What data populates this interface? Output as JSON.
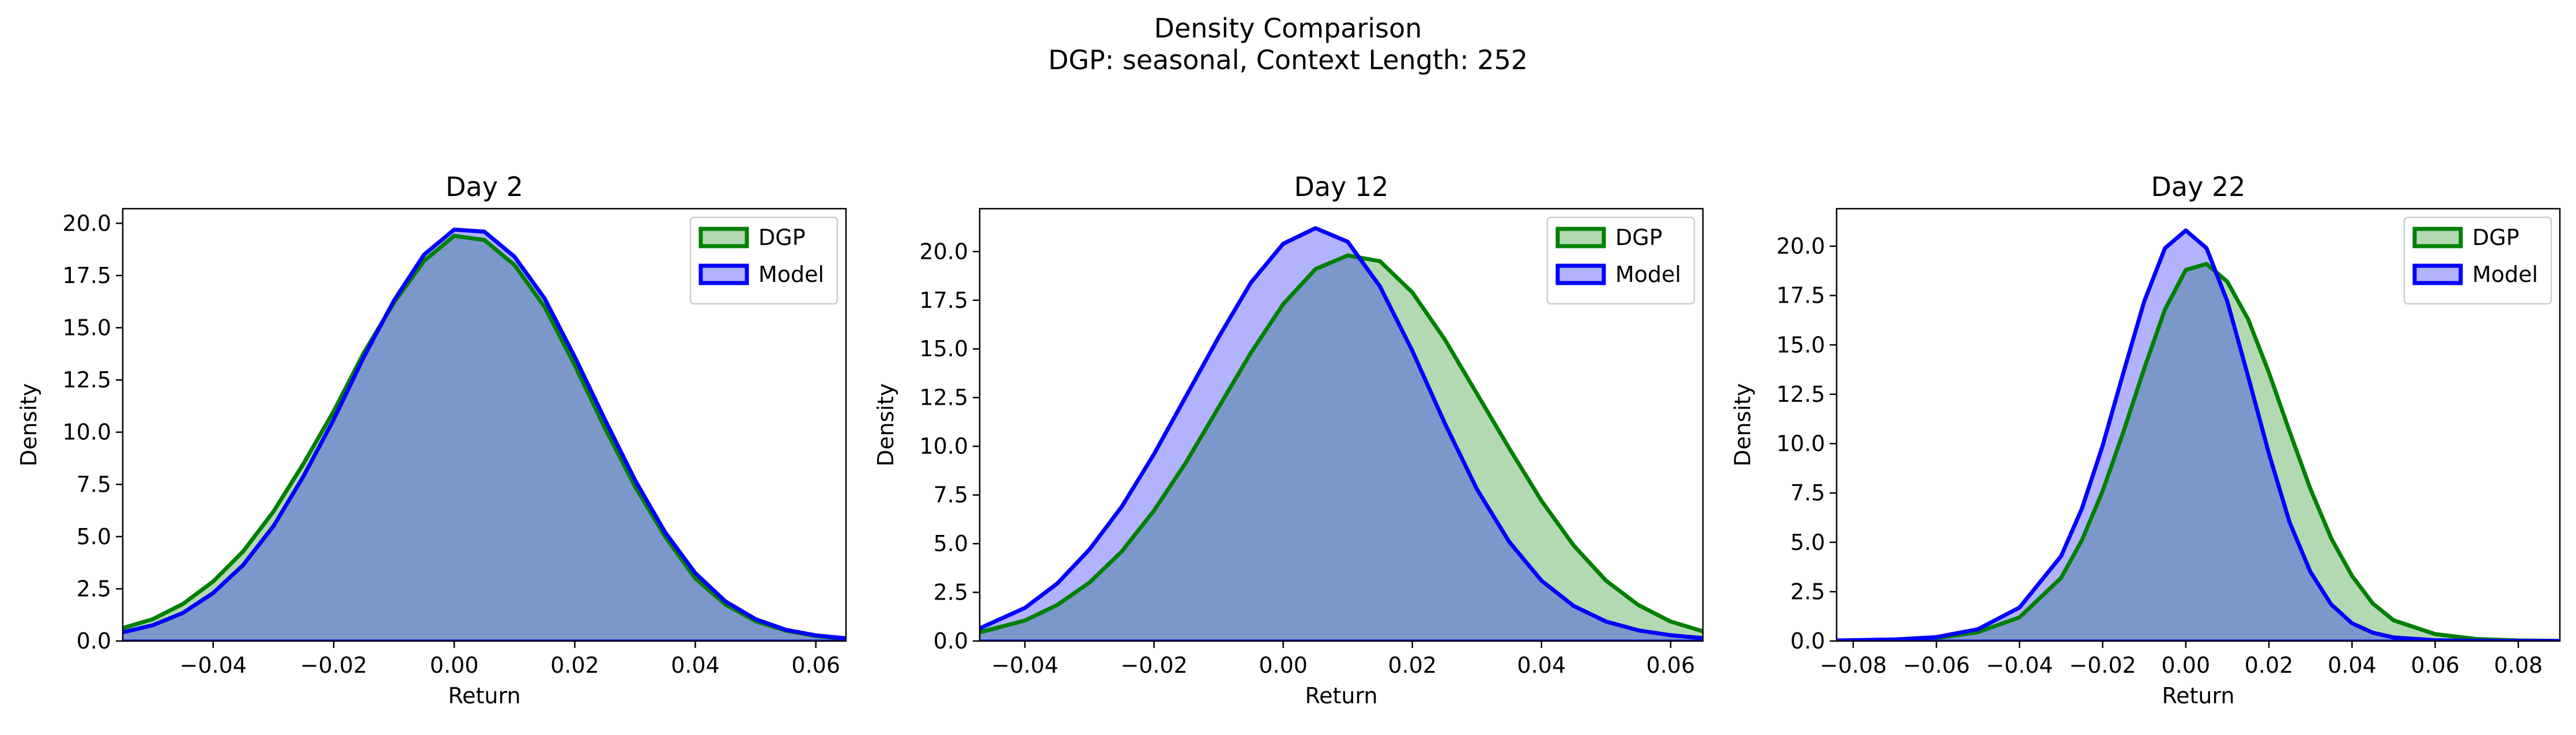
{
  "figure": {
    "title_line1": "Density Comparison",
    "title_line2": "DGP: seasonal, Context Length: 252"
  },
  "colors": {
    "dgp_line": "#008000",
    "dgp_fill": "#008000",
    "model_line": "#0000ff",
    "model_fill": "#0000ff"
  },
  "chart_data": [
    {
      "type": "area",
      "title": "Day 2",
      "xlabel": "Return",
      "ylabel": "Density",
      "xlim": [
        -0.055,
        0.065
      ],
      "ylim": [
        0,
        20.7
      ],
      "xticks": [
        -0.04,
        -0.02,
        0.0,
        0.02,
        0.04,
        0.06
      ],
      "xtick_labels": [
        "−0.04",
        "−0.02",
        "0.00",
        "0.02",
        "0.04",
        "0.06"
      ],
      "yticks": [
        0,
        2.5,
        5,
        7.5,
        10,
        12.5,
        15,
        17.5,
        20
      ],
      "ytick_labels": [
        "0.0",
        "2.5",
        "5.0",
        "7.5",
        "10.0",
        "12.5",
        "15.0",
        "17.5",
        "20.0"
      ],
      "legend": "top-right",
      "series": [
        {
          "name": "DGP",
          "x": [
            -0.055,
            -0.05,
            -0.045,
            -0.04,
            -0.035,
            -0.03,
            -0.025,
            -0.02,
            -0.015,
            -0.01,
            -0.005,
            0.0,
            0.005,
            0.01,
            0.015,
            0.02,
            0.025,
            0.03,
            0.035,
            0.04,
            0.045,
            0.05,
            0.055,
            0.06,
            0.065
          ],
          "y": [
            0.62,
            1.05,
            1.78,
            2.85,
            4.3,
            6.2,
            8.5,
            11.0,
            13.8,
            16.2,
            18.2,
            19.4,
            19.2,
            18.0,
            16.0,
            13.2,
            10.2,
            7.4,
            5.0,
            3.0,
            1.75,
            0.95,
            0.5,
            0.24,
            0.11
          ]
        },
        {
          "name": "Model",
          "x": [
            -0.055,
            -0.05,
            -0.045,
            -0.04,
            -0.035,
            -0.03,
            -0.025,
            -0.02,
            -0.015,
            -0.01,
            -0.005,
            0.0,
            0.005,
            0.01,
            0.015,
            0.02,
            0.025,
            0.03,
            0.035,
            0.04,
            0.045,
            0.05,
            0.055,
            0.06,
            0.065
          ],
          "y": [
            0.42,
            0.76,
            1.35,
            2.3,
            3.65,
            5.5,
            7.9,
            10.6,
            13.6,
            16.3,
            18.5,
            19.7,
            19.6,
            18.4,
            16.4,
            13.6,
            10.6,
            7.7,
            5.2,
            3.25,
            1.9,
            1.05,
            0.54,
            0.27,
            0.13
          ]
        }
      ]
    },
    {
      "type": "area",
      "title": "Day 12",
      "xlabel": "Return",
      "ylabel": "Density",
      "xlim": [
        -0.047,
        0.065
      ],
      "ylim": [
        0,
        22.2
      ],
      "xticks": [
        -0.04,
        -0.02,
        0.0,
        0.02,
        0.04,
        0.06
      ],
      "xtick_labels": [
        "−0.04",
        "−0.02",
        "0.00",
        "0.02",
        "0.04",
        "0.06"
      ],
      "yticks": [
        0,
        2.5,
        5,
        7.5,
        10,
        12.5,
        15,
        17.5,
        20
      ],
      "ytick_labels": [
        "0.0",
        "2.5",
        "5.0",
        "7.5",
        "10.0",
        "12.5",
        "15.0",
        "17.5",
        "20.0"
      ],
      "legend": "top-right",
      "series": [
        {
          "name": "DGP",
          "x": [
            -0.047,
            -0.04,
            -0.035,
            -0.03,
            -0.025,
            -0.02,
            -0.015,
            -0.01,
            -0.005,
            0.0,
            0.005,
            0.01,
            0.015,
            0.02,
            0.025,
            0.03,
            0.035,
            0.04,
            0.045,
            0.05,
            0.055,
            0.06,
            0.065
          ],
          "y": [
            0.45,
            1.05,
            1.85,
            3.0,
            4.6,
            6.7,
            9.2,
            12.0,
            14.8,
            17.3,
            19.1,
            19.8,
            19.5,
            17.9,
            15.5,
            12.7,
            9.9,
            7.2,
            4.9,
            3.1,
            1.85,
            1.0,
            0.5
          ]
        },
        {
          "name": "Model",
          "x": [
            -0.047,
            -0.04,
            -0.035,
            -0.03,
            -0.025,
            -0.02,
            -0.015,
            -0.01,
            -0.005,
            0.0,
            0.005,
            0.01,
            0.015,
            0.02,
            0.025,
            0.03,
            0.035,
            0.04,
            0.045,
            0.05,
            0.055,
            0.06,
            0.065
          ],
          "y": [
            0.65,
            1.7,
            2.95,
            4.7,
            6.9,
            9.6,
            12.6,
            15.6,
            18.4,
            20.4,
            21.2,
            20.5,
            18.2,
            14.9,
            11.2,
            7.8,
            5.1,
            3.1,
            1.8,
            1.0,
            0.55,
            0.3,
            0.15
          ]
        }
      ]
    },
    {
      "type": "area",
      "title": "Day 22",
      "xlabel": "Return",
      "ylabel": "Density",
      "xlim": [
        -0.084,
        0.09
      ],
      "ylim": [
        0,
        21.9
      ],
      "xticks": [
        -0.08,
        -0.06,
        -0.04,
        -0.02,
        0.0,
        0.02,
        0.04,
        0.06,
        0.08
      ],
      "xtick_labels": [
        "−0.08",
        "−0.06",
        "−0.04",
        "−0.02",
        "0.00",
        "0.02",
        "0.04",
        "0.06",
        "0.08"
      ],
      "yticks": [
        0,
        2.5,
        5,
        7.5,
        10,
        12.5,
        15,
        17.5,
        20
      ],
      "ytick_labels": [
        "0.0",
        "2.5",
        "5.0",
        "7.5",
        "10.0",
        "12.5",
        "15.0",
        "17.5",
        "20.0"
      ],
      "legend": "top-right",
      "series": [
        {
          "name": "DGP",
          "x": [
            -0.084,
            -0.07,
            -0.06,
            -0.05,
            -0.04,
            -0.03,
            -0.025,
            -0.02,
            -0.015,
            -0.01,
            -0.005,
            0.0,
            0.005,
            0.01,
            0.015,
            0.02,
            0.025,
            0.03,
            0.035,
            0.04,
            0.045,
            0.05,
            0.06,
            0.07,
            0.08,
            0.09
          ],
          "y": [
            0.02,
            0.06,
            0.15,
            0.45,
            1.2,
            3.2,
            5.1,
            7.6,
            10.6,
            13.8,
            16.8,
            18.8,
            19.1,
            18.2,
            16.3,
            13.6,
            10.6,
            7.7,
            5.2,
            3.3,
            1.9,
            1.05,
            0.35,
            0.1,
            0.03,
            0.01
          ]
        },
        {
          "name": "Model",
          "x": [
            -0.084,
            -0.07,
            -0.06,
            -0.05,
            -0.04,
            -0.03,
            -0.025,
            -0.02,
            -0.015,
            -0.01,
            -0.005,
            0.0,
            0.005,
            0.01,
            0.015,
            0.02,
            0.025,
            0.03,
            0.035,
            0.04,
            0.045,
            0.05,
            0.06,
            0.07,
            0.08,
            0.09
          ],
          "y": [
            0.03,
            0.08,
            0.2,
            0.6,
            1.7,
            4.3,
            6.7,
            9.9,
            13.6,
            17.2,
            19.9,
            20.8,
            19.9,
            17.2,
            13.4,
            9.5,
            6.0,
            3.5,
            1.85,
            0.9,
            0.42,
            0.18,
            0.04,
            0.01,
            0.0,
            0.0
          ]
        }
      ]
    }
  ]
}
